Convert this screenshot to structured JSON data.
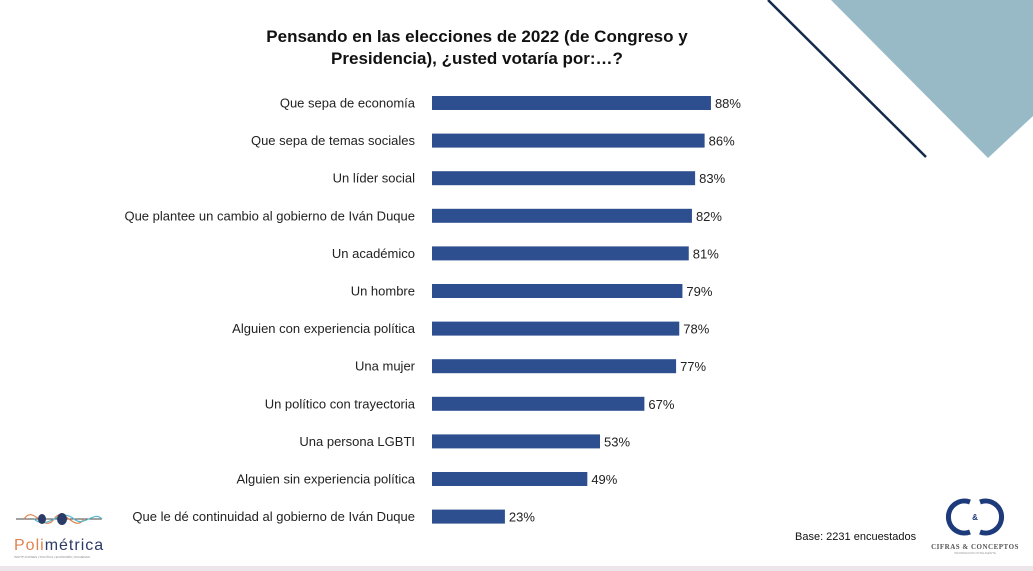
{
  "chart_data": {
    "type": "bar",
    "orientation": "horizontal",
    "title": "Pensando en las elecciones de 2022 (de Congreso y Presidencia), ¿usted votaría por:…?",
    "categories": [
      "Que sepa de economía",
      "Que sepa de temas sociales",
      "Un líder social",
      "Que plantee un cambio al gobierno de Iván Duque",
      "Un académico",
      "Un hombre",
      "Alguien con experiencia política",
      "Una mujer",
      "Un político con trayectoria",
      "Una persona LGBTI",
      "Alguien sin experiencia política",
      "Que le dé continuidad al gobierno de Iván Duque"
    ],
    "values": [
      88,
      86,
      83,
      82,
      81,
      79,
      78,
      77,
      67,
      53,
      49,
      23
    ],
    "value_labels": [
      "88%",
      "86%",
      "83%",
      "82%",
      "81%",
      "79%",
      "78%",
      "77%",
      "67%",
      "53%",
      "49%",
      "23%"
    ],
    "xlim": [
      0,
      100
    ],
    "grid": false,
    "bar_color": "#2e4f8f"
  },
  "footer": {
    "base": "Base: 2231 encuestados"
  },
  "logos": {
    "left": {
      "name_a": "Poli",
      "name_b": "métrica",
      "tagline": "INSTITUCIONES | POLÍTICA | ECONOMÍA | SOCIEDAD"
    },
    "right": {
      "mark": "&",
      "name": "CIFRAS & CONCEPTOS",
      "tagline": "INFORMACIÓN INTELIGENTE"
    }
  }
}
